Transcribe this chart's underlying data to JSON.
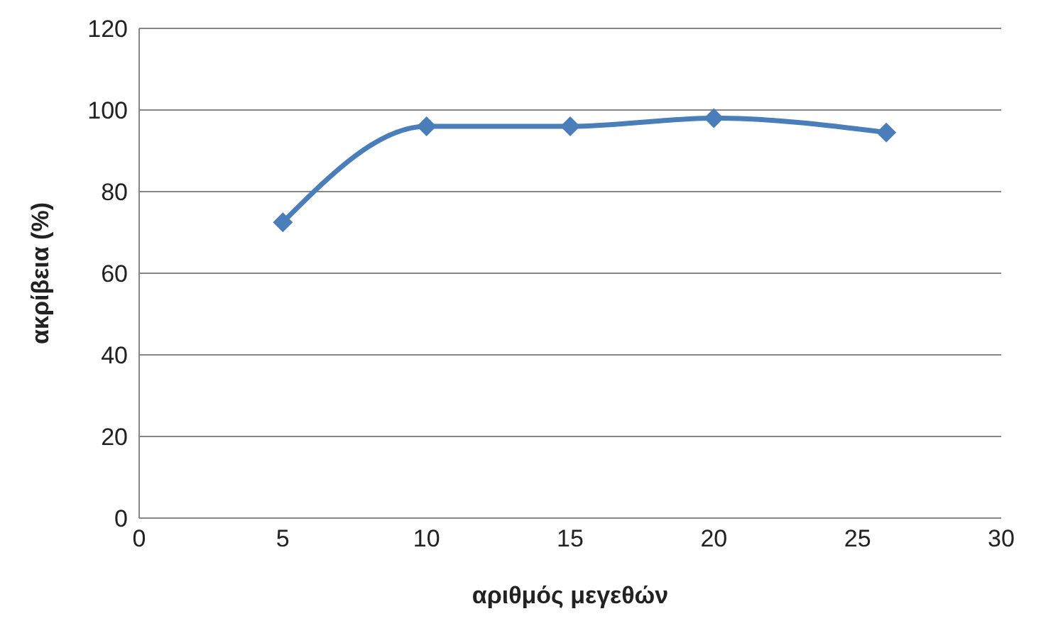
{
  "chart_data": {
    "type": "line",
    "xlabel": "αριθμός μεγεθών",
    "ylabel": "ακρίβεια (%)",
    "x": [
      5,
      10,
      15,
      20,
      26
    ],
    "series": [
      {
        "color": "#4a7ebb",
        "values": [
          72.5,
          96,
          96,
          98,
          94.5
        ]
      }
    ],
    "xlim": [
      0,
      30
    ],
    "xticks": [
      0,
      5,
      10,
      15,
      20,
      25,
      30
    ],
    "ylim": [
      0,
      120
    ],
    "yticks": [
      0,
      20,
      40,
      60,
      80,
      100,
      120
    ],
    "grid": "y",
    "legend": false,
    "marker": "diamond",
    "line_style": "solid"
  }
}
